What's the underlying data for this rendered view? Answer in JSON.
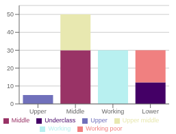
{
  "chart_data": {
    "type": "bar",
    "stacked": true,
    "categories": [
      "Upper",
      "Middle",
      "Working",
      "Lower"
    ],
    "series": [
      {
        "name": "Upper",
        "color": "#7070bb",
        "values": [
          5,
          0,
          0,
          0
        ]
      },
      {
        "name": "Middle",
        "color": "#993366",
        "values": [
          0,
          30,
          0,
          0
        ]
      },
      {
        "name": "Upper middle",
        "color": "#e8e8b0",
        "values": [
          0,
          20,
          0,
          0
        ]
      },
      {
        "name": "Working",
        "color": "#b8f0f0",
        "values": [
          0,
          0,
          30,
          0
        ]
      },
      {
        "name": "Underclass",
        "color": "#440066",
        "values": [
          0,
          0,
          0,
          12
        ]
      },
      {
        "name": "Working poor",
        "color": "#f08080",
        "values": [
          0,
          0,
          0,
          18
        ]
      }
    ],
    "ylim": [
      0,
      55
    ],
    "yticks": [
      0,
      10,
      20,
      30,
      40,
      50
    ],
    "grid": true,
    "legend": "bottom"
  }
}
